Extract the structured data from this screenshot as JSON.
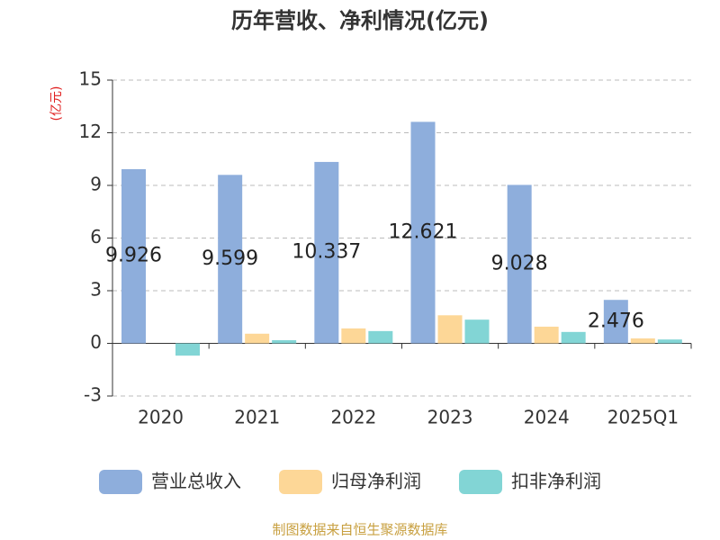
{
  "chart_data": {
    "type": "bar",
    "title": "历年营收、净利情况(亿元)",
    "y_label": "(亿元)",
    "categories": [
      "2020",
      "2021",
      "2022",
      "2023",
      "2024",
      "2025Q1"
    ],
    "series": [
      {
        "name": "营业总收入",
        "color": "#8eaedc",
        "values": [
          9.926,
          9.599,
          10.337,
          12.621,
          9.028,
          2.476
        ],
        "show_labels": true
      },
      {
        "name": "归母净利润",
        "color": "#fdd797",
        "values": [
          0,
          0.55,
          0.85,
          1.6,
          0.95,
          0.28
        ]
      },
      {
        "name": "扣非净利润",
        "color": "#82d5d5",
        "values": [
          -0.7,
          0.18,
          0.7,
          1.35,
          0.65,
          0.22
        ]
      }
    ],
    "ylim": [
      -3,
      15
    ],
    "yticks": [
      -3,
      0,
      3,
      6,
      9,
      12,
      15
    ],
    "grid": true,
    "source": "制图数据来自恒生聚源数据库"
  }
}
